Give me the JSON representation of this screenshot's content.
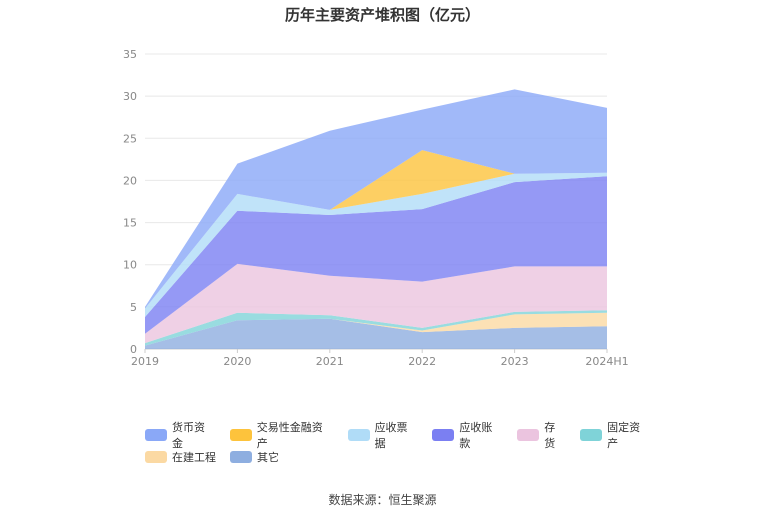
{
  "chart_data": {
    "type": "area",
    "stacked": true,
    "title": "历年主要资产堆积图（亿元）",
    "unit": "亿元",
    "x": [
      "2019",
      "2020",
      "2021",
      "2022",
      "2023",
      "2024H1"
    ],
    "ylim": [
      0,
      35
    ],
    "yticks": [
      0,
      5,
      10,
      15,
      20,
      25,
      30,
      35
    ],
    "grid": true,
    "legend_position": "bottom",
    "series": [
      {
        "name": "其它",
        "color": "#8eaee0",
        "values": [
          0.4,
          3.4,
          3.6,
          2.0,
          2.5,
          2.7
        ]
      },
      {
        "name": "在建工程",
        "color": "#fbd9a3",
        "values": [
          0.0,
          0.0,
          0.0,
          0.2,
          1.6,
          1.6
        ]
      },
      {
        "name": "固定资产",
        "color": "#7fd3d8",
        "values": [
          0.3,
          0.9,
          0.4,
          0.3,
          0.3,
          0.3
        ]
      },
      {
        "name": "存货",
        "color": "#ebc4df",
        "values": [
          1.1,
          5.8,
          4.7,
          5.5,
          5.4,
          5.2
        ]
      },
      {
        "name": "应收账款",
        "color": "#7b7ff2",
        "values": [
          2.0,
          6.3,
          7.2,
          8.6,
          10.0,
          10.7
        ]
      },
      {
        "name": "应收票据",
        "color": "#b0dcf7",
        "values": [
          1.0,
          2.0,
          0.6,
          1.8,
          1.0,
          0.4
        ]
      },
      {
        "name": "交易性金融资产",
        "color": "#fdc33c",
        "values": [
          0.0,
          0.0,
          0.0,
          5.2,
          0.0,
          0.0
        ]
      },
      {
        "name": "货币资金",
        "color": "#8aa8f7",
        "values": [
          0.2,
          3.6,
          9.4,
          4.8,
          10.0,
          7.7
        ]
      }
    ],
    "legend_order": [
      "货币资金",
      "交易性金融资产",
      "应收票据",
      "应收账款",
      "存货",
      "固定资产",
      "在建工程",
      "其它"
    ]
  },
  "source_text": "数据来源：恒生聚源"
}
